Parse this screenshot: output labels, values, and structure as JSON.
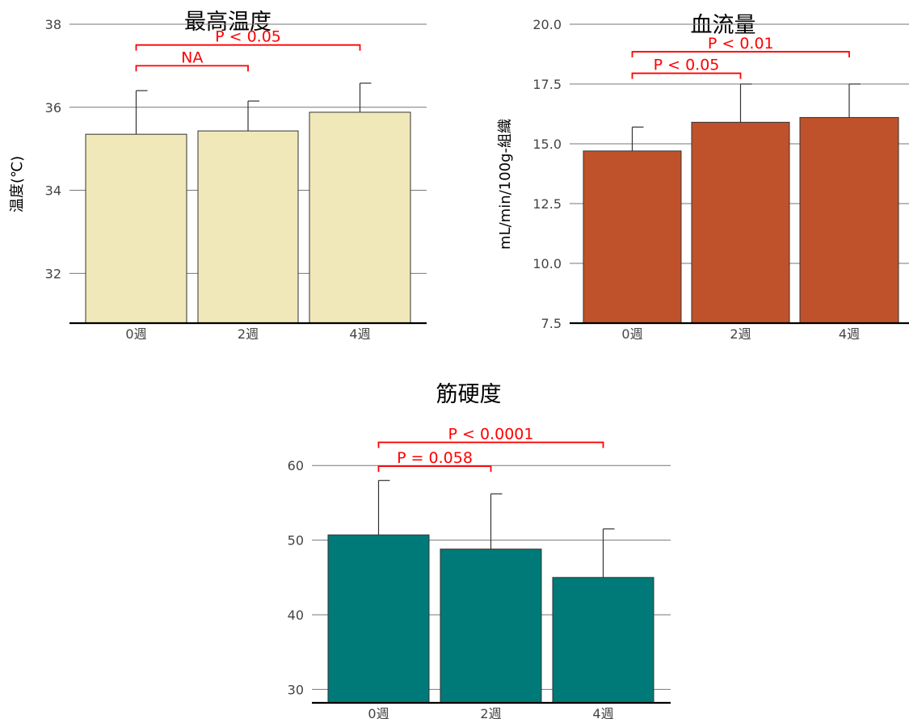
{
  "chart_data": [
    {
      "type": "bar",
      "title": "最高温度",
      "ylabel": "温度(℃)",
      "xlabel": "",
      "categories": [
        "0週",
        "2週",
        "4週"
      ],
      "values": [
        35.35,
        35.43,
        35.88
      ],
      "errors": [
        1.05,
        0.72,
        0.7
      ],
      "ylim": [
        30.8,
        38
      ],
      "yticks": [
        32,
        34,
        36,
        38
      ],
      "ytick_labels": [
        "32",
        "34",
        "36",
        "38"
      ],
      "grid": true,
      "bar_color": "#f0e8b8",
      "significance": [
        {
          "from": 0,
          "to": 1,
          "label": "NA",
          "level": 37.0
        },
        {
          "from": 0,
          "to": 2,
          "label": "P < 0.05",
          "level": 37.5
        }
      ]
    },
    {
      "type": "bar",
      "title": "血流量",
      "ylabel": "mL/min/100g-組織",
      "xlabel": "",
      "categories": [
        "0週",
        "2週",
        "4週"
      ],
      "values": [
        14.7,
        15.9,
        16.1
      ],
      "errors": [
        1.0,
        1.6,
        1.4
      ],
      "ylim": [
        7.5,
        20.0
      ],
      "yticks": [
        7.5,
        10.0,
        12.5,
        15.0,
        17.5,
        20.0
      ],
      "ytick_labels": [
        "7.5",
        "10.0",
        "12.5",
        "15.0",
        "17.5",
        "20.0"
      ],
      "grid": true,
      "bar_color": "#c0522b",
      "significance": [
        {
          "from": 0,
          "to": 1,
          "label": "P < 0.05",
          "level": 17.95
        },
        {
          "from": 0,
          "to": 2,
          "label": "P < 0.01",
          "level": 18.85
        }
      ]
    },
    {
      "type": "bar",
      "title": "筋硬度",
      "ylabel": "",
      "xlabel": "",
      "categories": [
        "0週",
        "2週",
        "4週"
      ],
      "values": [
        50.7,
        48.8,
        45.0
      ],
      "errors": [
        7.3,
        7.4,
        6.5
      ],
      "ylim": [
        28.2,
        65
      ],
      "yticks": [
        30,
        40,
        50,
        60
      ],
      "ytick_labels": [
        "30",
        "40",
        "50",
        "60"
      ],
      "grid": true,
      "bar_color": "#007a78",
      "significance": [
        {
          "from": 0,
          "to": 1,
          "label": "P = 0.058",
          "level": 59.9
        },
        {
          "from": 0,
          "to": 2,
          "label": "P < 0.0001",
          "level": 63.1
        }
      ]
    }
  ]
}
